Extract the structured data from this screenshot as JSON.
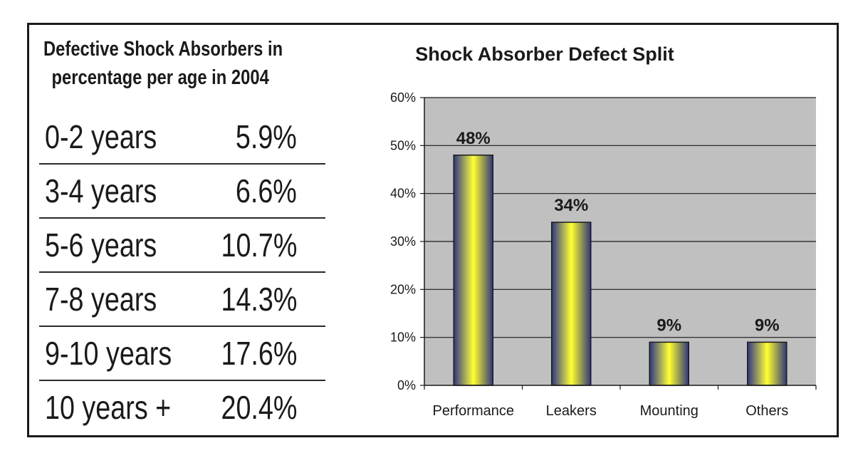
{
  "table": {
    "title_line1": "Defective Shock Absorbers in",
    "title_line2": "percentage per age in 2004",
    "rows": [
      {
        "age": "0-2 years",
        "value": "5.9%"
      },
      {
        "age": "3-4 years",
        "value": "6.6%"
      },
      {
        "age": "5-6 years",
        "value": "10.7%"
      },
      {
        "age": "7-8 years",
        "value": "14.3%"
      },
      {
        "age": "9-10 years",
        "value": "17.6%"
      },
      {
        "age": "10 years +",
        "value": "20.4%"
      }
    ]
  },
  "colors": {
    "plot_background": "#c0c0c0",
    "bar_edge": "#2e3680",
    "bar_center": "#ffff33",
    "text": "#1a1a1a"
  },
  "chart_data": {
    "type": "bar",
    "title": "Shock Absorber Defect Split",
    "categories": [
      "Performance",
      "Leakers",
      "Mounting",
      "Others"
    ],
    "values": [
      48,
      34,
      9,
      9
    ],
    "data_labels": [
      "48%",
      "34%",
      "9%",
      "9%"
    ],
    "yticks": [
      "0%",
      "10%",
      "20%",
      "30%",
      "40%",
      "50%",
      "60%"
    ],
    "ylim": [
      0,
      60
    ],
    "grid": true,
    "legend": "none"
  }
}
